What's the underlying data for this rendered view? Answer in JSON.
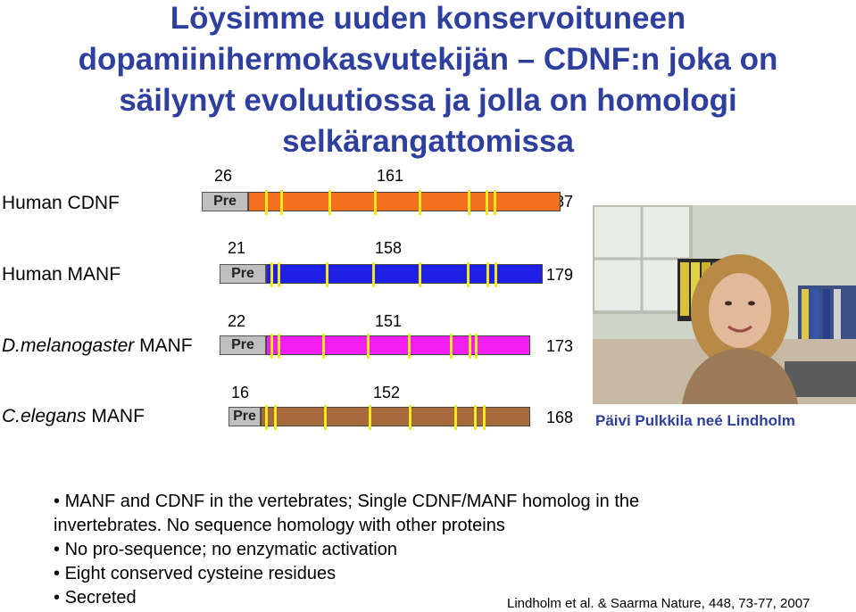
{
  "title": {
    "lines": [
      "Löysimme uuden konservoituneen",
      "dopamiinihermokasvutekijän – CDNF:n joka on",
      "säilynyt evoluutiossa ja jolla on homologi",
      "selkärangattomissa"
    ]
  },
  "proteins": [
    {
      "species": "",
      "name": "Human CDNF",
      "pre_end": "26",
      "cys_mark": "161",
      "length": "187",
      "pre_label": "Pre",
      "color": "#f26f1c"
    },
    {
      "species": "",
      "name": "Human MANF",
      "pre_end": "21",
      "cys_mark": "158",
      "length": "179",
      "pre_label": "Pre",
      "color": "#1f1fe6"
    },
    {
      "species": "D.melanogaster",
      "name": "MANF",
      "pre_end": "22",
      "cys_mark": "151",
      "length": "173",
      "pre_label": "Pre",
      "color": "#f21ef2"
    },
    {
      "species": "C.elegans",
      "name": "MANF",
      "pre_end": "16",
      "cys_mark": "152",
      "length": "168",
      "pre_label": "Pre",
      "color": "#a86a3c"
    }
  ],
  "photo_caption": "Päivi Pulkkila neé Lindholm",
  "bullets": [
    "MANF and CDNF in the vertebrates; Single CDNF/MANF homolog in the",
    "invertebrates. No sequence homology with other proteins",
    "No pro-sequence; no enzymatic activation",
    "Eight conserved cysteine residues",
    "Secreted"
  ],
  "bullet_marks": [
    "•",
    "",
    "•",
    "•",
    "•"
  ],
  "reference": "Lindholm et al. & Saarma Nature, 448, 73-77, 2007"
}
